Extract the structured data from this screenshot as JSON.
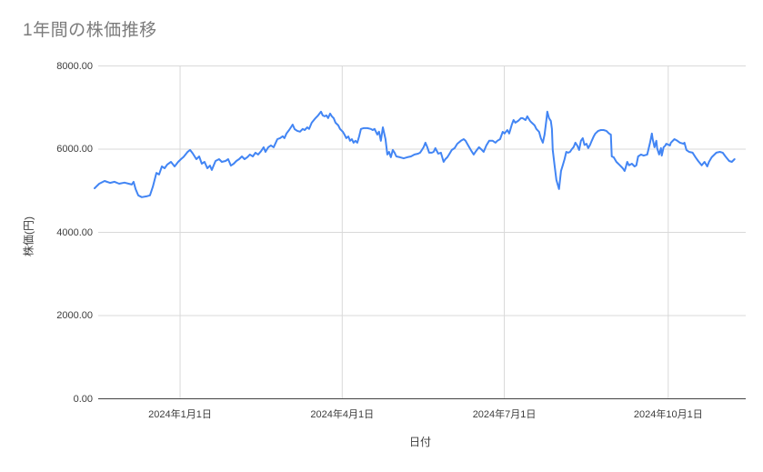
{
  "chart_data": {
    "type": "line",
    "title": "1年間の株価推移",
    "xlabel": "日付",
    "ylabel": "株価(円)",
    "legend": "none",
    "grid": true,
    "x_axis": {
      "unit": "days_since_start_date",
      "start_date": "2023-11-14",
      "end_date": "2024-11-08",
      "domain_days": [
        0,
        365.5
      ],
      "tick_days": [
        48,
        139,
        230,
        322
      ],
      "tick_labels": [
        "2024年1月1日",
        "2024年4月1日",
        "2024年7月1日",
        "2024年10月1日"
      ]
    },
    "y_axis": {
      "range": [
        0,
        8000
      ],
      "tick_values": [
        0,
        2000,
        4000,
        6000,
        8000
      ],
      "tick_labels": [
        "0.00",
        "2000.00",
        "4000.00",
        "6000.00",
        "8000.00"
      ]
    },
    "series": [
      {
        "color": "#4285f4",
        "points": [
          [
            0,
            5060
          ],
          [
            2.6,
            5170
          ],
          [
            5.6,
            5235
          ],
          [
            8.7,
            5190
          ],
          [
            11.2,
            5215
          ],
          [
            13.8,
            5170
          ],
          [
            16.8,
            5195
          ],
          [
            19.9,
            5160
          ],
          [
            20.9,
            5150
          ],
          [
            21.9,
            5215
          ],
          [
            23,
            5040
          ],
          [
            24.5,
            4890
          ],
          [
            26.5,
            4845
          ],
          [
            29.1,
            4865
          ],
          [
            31.1,
            4890
          ],
          [
            32.7,
            5100
          ],
          [
            34.7,
            5430
          ],
          [
            36.2,
            5390
          ],
          [
            37.8,
            5585
          ],
          [
            39.3,
            5540
          ],
          [
            40.8,
            5630
          ],
          [
            42.9,
            5695
          ],
          [
            44.9,
            5585
          ],
          [
            46.9,
            5695
          ],
          [
            48.5,
            5760
          ],
          [
            50,
            5815
          ],
          [
            52.1,
            5930
          ],
          [
            53.6,
            5980
          ],
          [
            55.1,
            5900
          ],
          [
            57.1,
            5760
          ],
          [
            58.7,
            5825
          ],
          [
            60.2,
            5650
          ],
          [
            61.7,
            5695
          ],
          [
            63.3,
            5540
          ],
          [
            64.8,
            5605
          ],
          [
            65.8,
            5500
          ],
          [
            67.9,
            5715
          ],
          [
            69.9,
            5760
          ],
          [
            71.4,
            5695
          ],
          [
            73.5,
            5715
          ],
          [
            75,
            5760
          ],
          [
            76.5,
            5605
          ],
          [
            78.1,
            5650
          ],
          [
            79.6,
            5715
          ],
          [
            81.1,
            5760
          ],
          [
            82.7,
            5825
          ],
          [
            84.2,
            5760
          ],
          [
            85.7,
            5805
          ],
          [
            87.2,
            5870
          ],
          [
            88.8,
            5825
          ],
          [
            90.3,
            5915
          ],
          [
            91.8,
            5870
          ],
          [
            93.4,
            5950
          ],
          [
            94.9,
            6045
          ],
          [
            95.9,
            5935
          ],
          [
            97.5,
            6045
          ],
          [
            99,
            6090
          ],
          [
            100.5,
            6045
          ],
          [
            101.5,
            6135
          ],
          [
            102.6,
            6240
          ],
          [
            104.1,
            6265
          ],
          [
            105.6,
            6310
          ],
          [
            106.6,
            6265
          ],
          [
            107.7,
            6375
          ],
          [
            109.2,
            6460
          ],
          [
            110.2,
            6525
          ],
          [
            111.2,
            6590
          ],
          [
            112.3,
            6480
          ],
          [
            113.8,
            6440
          ],
          [
            115.3,
            6420
          ],
          [
            116.8,
            6485
          ],
          [
            117.9,
            6460
          ],
          [
            119.4,
            6525
          ],
          [
            120.4,
            6485
          ],
          [
            121.9,
            6635
          ],
          [
            124,
            6745
          ],
          [
            125.5,
            6810
          ],
          [
            127.1,
            6900
          ],
          [
            128.1,
            6810
          ],
          [
            129.1,
            6790
          ],
          [
            130.1,
            6810
          ],
          [
            131.1,
            6745
          ],
          [
            132.2,
            6855
          ],
          [
            133.2,
            6790
          ],
          [
            134.2,
            6745
          ],
          [
            135.2,
            6635
          ],
          [
            136.8,
            6570
          ],
          [
            137.8,
            6485
          ],
          [
            139.3,
            6420
          ],
          [
            140.3,
            6350
          ],
          [
            141.3,
            6265
          ],
          [
            142.4,
            6305
          ],
          [
            143.4,
            6200
          ],
          [
            144.4,
            6240
          ],
          [
            145.4,
            6155
          ],
          [
            146.4,
            6200
          ],
          [
            147.5,
            6155
          ],
          [
            148.5,
            6305
          ],
          [
            149.5,
            6485
          ],
          [
            151,
            6505
          ],
          [
            153.1,
            6505
          ],
          [
            155.1,
            6485
          ],
          [
            156.1,
            6460
          ],
          [
            157.2,
            6485
          ],
          [
            158.7,
            6350
          ],
          [
            159.7,
            6420
          ],
          [
            160.7,
            6200
          ],
          [
            161.8,
            6525
          ],
          [
            163.3,
            6240
          ],
          [
            164.3,
            5870
          ],
          [
            165.3,
            5935
          ],
          [
            166.3,
            5805
          ],
          [
            167.4,
            5980
          ],
          [
            168.4,
            5915
          ],
          [
            169.4,
            5825
          ],
          [
            171.4,
            5805
          ],
          [
            173.5,
            5780
          ],
          [
            175.5,
            5805
          ],
          [
            177.6,
            5825
          ],
          [
            179.6,
            5870
          ],
          [
            181.6,
            5890
          ],
          [
            182.7,
            5915
          ],
          [
            183.7,
            5980
          ],
          [
            184.7,
            6045
          ],
          [
            185.7,
            6155
          ],
          [
            186.8,
            6045
          ],
          [
            187.8,
            5915
          ],
          [
            189.3,
            5915
          ],
          [
            190.3,
            5935
          ],
          [
            191.3,
            6025
          ],
          [
            192.9,
            5890
          ],
          [
            194.4,
            5915
          ],
          [
            195.9,
            5695
          ],
          [
            196.9,
            5760
          ],
          [
            198,
            5805
          ],
          [
            199,
            5870
          ],
          [
            200.5,
            5980
          ],
          [
            202.1,
            6025
          ],
          [
            203.6,
            6130
          ],
          [
            205.6,
            6200
          ],
          [
            207.2,
            6240
          ],
          [
            208.2,
            6200
          ],
          [
            209.7,
            6090
          ],
          [
            211.2,
            5980
          ],
          [
            212.8,
            5870
          ],
          [
            213.8,
            5935
          ],
          [
            215.8,
            6045
          ],
          [
            217.4,
            5980
          ],
          [
            218.4,
            5935
          ],
          [
            219.9,
            6090
          ],
          [
            221.5,
            6200
          ],
          [
            223.5,
            6200
          ],
          [
            225,
            6155
          ],
          [
            226.1,
            6200
          ],
          [
            227.6,
            6240
          ],
          [
            229.1,
            6415
          ],
          [
            230.1,
            6375
          ],
          [
            231.7,
            6460
          ],
          [
            232.7,
            6375
          ],
          [
            234.2,
            6590
          ],
          [
            235.2,
            6700
          ],
          [
            236.2,
            6635
          ],
          [
            237.8,
            6680
          ],
          [
            239.3,
            6745
          ],
          [
            240.3,
            6745
          ],
          [
            241.9,
            6700
          ],
          [
            242.9,
            6790
          ],
          [
            244.4,
            6680
          ],
          [
            245.4,
            6635
          ],
          [
            247,
            6570
          ],
          [
            248,
            6485
          ],
          [
            249.5,
            6415
          ],
          [
            250.5,
            6265
          ],
          [
            251.6,
            6155
          ],
          [
            252.6,
            6350
          ],
          [
            253.6,
            6700
          ],
          [
            254.1,
            6900
          ],
          [
            255.1,
            6745
          ],
          [
            256.1,
            6680
          ],
          [
            256.7,
            6485
          ],
          [
            257.2,
            5980
          ],
          [
            258.2,
            5610
          ],
          [
            259.2,
            5260
          ],
          [
            260.7,
            5040
          ],
          [
            261.8,
            5475
          ],
          [
            262.8,
            5610
          ],
          [
            263.8,
            5760
          ],
          [
            264.8,
            5935
          ],
          [
            265.8,
            5915
          ],
          [
            266.9,
            5935
          ],
          [
            267.9,
            6000
          ],
          [
            268.9,
            6050
          ],
          [
            269.9,
            6155
          ],
          [
            270.9,
            6090
          ],
          [
            272,
            5980
          ],
          [
            273,
            6200
          ],
          [
            274,
            6265
          ],
          [
            275,
            6100
          ],
          [
            276.1,
            6130
          ],
          [
            277.1,
            6025
          ],
          [
            278.1,
            6100
          ],
          [
            279.1,
            6200
          ],
          [
            280.1,
            6300
          ],
          [
            281.1,
            6375
          ],
          [
            282.7,
            6440
          ],
          [
            284.2,
            6460
          ],
          [
            285.7,
            6460
          ],
          [
            287.3,
            6440
          ],
          [
            288.8,
            6375
          ],
          [
            289.8,
            6350
          ],
          [
            290.3,
            5825
          ],
          [
            291.4,
            5805
          ],
          [
            292.9,
            5695
          ],
          [
            294.9,
            5610
          ],
          [
            296.5,
            5540
          ],
          [
            297.5,
            5475
          ],
          [
            298,
            5540
          ],
          [
            299,
            5695
          ],
          [
            300,
            5610
          ],
          [
            301.6,
            5650
          ],
          [
            303.1,
            5585
          ],
          [
            304.1,
            5610
          ],
          [
            305.1,
            5825
          ],
          [
            306.7,
            5870
          ],
          [
            308.2,
            5845
          ],
          [
            310.2,
            5870
          ],
          [
            311.8,
            6155
          ],
          [
            312.8,
            6375
          ],
          [
            313.3,
            6240
          ],
          [
            314.3,
            6045
          ],
          [
            315.3,
            6200
          ],
          [
            315.8,
            6025
          ],
          [
            316.9,
            5870
          ],
          [
            317.9,
            6025
          ],
          [
            318.4,
            5845
          ],
          [
            319.4,
            6045
          ],
          [
            320.4,
            6090
          ],
          [
            320.9,
            6130
          ],
          [
            323,
            6090
          ],
          [
            323.5,
            6155
          ],
          [
            325.5,
            6240
          ],
          [
            327.1,
            6200
          ],
          [
            328.6,
            6155
          ],
          [
            330.6,
            6130
          ],
          [
            331.1,
            6155
          ],
          [
            332.2,
            5980
          ],
          [
            333.7,
            5935
          ],
          [
            335.7,
            5915
          ],
          [
            337.3,
            5805
          ],
          [
            338.8,
            5715
          ],
          [
            340.8,
            5610
          ],
          [
            342.4,
            5695
          ],
          [
            343.9,
            5585
          ],
          [
            344.9,
            5695
          ],
          [
            346.4,
            5805
          ],
          [
            349,
            5915
          ],
          [
            351,
            5935
          ],
          [
            352.6,
            5915
          ],
          [
            354.1,
            5825
          ],
          [
            356.2,
            5715
          ],
          [
            357.7,
            5695
          ],
          [
            359.2,
            5760
          ]
        ]
      }
    ]
  },
  "colors": {
    "background": "#ffffff",
    "title_text": "#7b7b7b",
    "axis_text": "#3c3c3c",
    "gridline": "#d9d9d9",
    "axis_line": "#424242",
    "series_line": "#4285f4"
  }
}
